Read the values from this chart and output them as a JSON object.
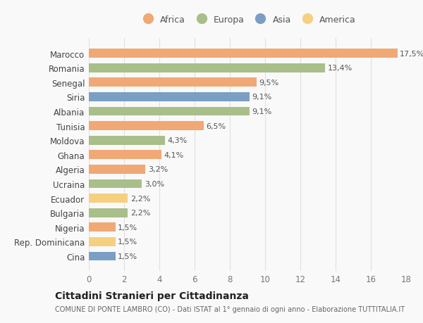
{
  "categories": [
    "Marocco",
    "Romania",
    "Senegal",
    "Siria",
    "Albania",
    "Tunisia",
    "Moldova",
    "Ghana",
    "Algeria",
    "Ucraina",
    "Ecuador",
    "Bulgaria",
    "Nigeria",
    "Rep. Dominicana",
    "Cina"
  ],
  "values": [
    17.5,
    13.4,
    9.5,
    9.1,
    9.1,
    6.5,
    4.3,
    4.1,
    3.2,
    3.0,
    2.2,
    2.2,
    1.5,
    1.5,
    1.5
  ],
  "labels": [
    "17,5%",
    "13,4%",
    "9,5%",
    "9,1%",
    "9,1%",
    "6,5%",
    "4,3%",
    "4,1%",
    "3,2%",
    "3,0%",
    "2,2%",
    "2,2%",
    "1,5%",
    "1,5%",
    "1,5%"
  ],
  "colors": [
    "#f0a875",
    "#a8bf8a",
    "#f0a875",
    "#7b9fc4",
    "#a8bf8a",
    "#f0a875",
    "#a8bf8a",
    "#f0a875",
    "#f0a875",
    "#a8bf8a",
    "#f5d080",
    "#a8bf8a",
    "#f0a875",
    "#f5d080",
    "#7b9fc4"
  ],
  "legend_labels": [
    "Africa",
    "Europa",
    "Asia",
    "America"
  ],
  "legend_colors": [
    "#f0a875",
    "#a8bf8a",
    "#7b9fc4",
    "#f5d080"
  ],
  "title": "Cittadini Stranieri per Cittadinanza",
  "subtitle": "COMUNE DI PONTE LAMBRO (CO) - Dati ISTAT al 1° gennaio di ogni anno - Elaborazione TUTTITALIA.IT",
  "xlim": [
    0,
    18
  ],
  "xticks": [
    0,
    2,
    4,
    6,
    8,
    10,
    12,
    14,
    16,
    18
  ],
  "background_color": "#f9f9f9",
  "grid_color": "#e0e0e0",
  "bar_height": 0.62
}
